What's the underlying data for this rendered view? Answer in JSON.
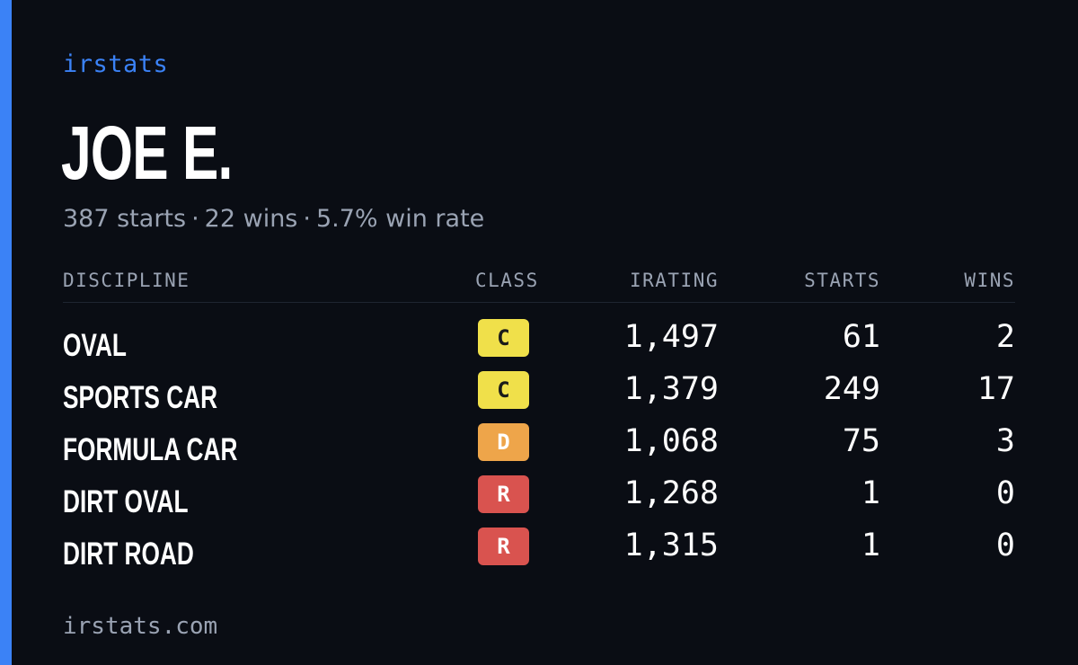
{
  "brand": "irstats",
  "player": {
    "name": "JOE E."
  },
  "summary": {
    "starts": "387 starts",
    "wins": "22 wins",
    "win_rate": "5.7% win rate",
    "separator": "·"
  },
  "table": {
    "headers": {
      "discipline": "DISCIPLINE",
      "class": "CLASS",
      "irating": "IRATING",
      "starts": "STARTS",
      "wins": "WINS"
    },
    "rows": [
      {
        "discipline": "OVAL",
        "class": "C",
        "irating": "1,497",
        "starts": "61",
        "wins": "2"
      },
      {
        "discipline": "SPORTS CAR",
        "class": "C",
        "irating": "1,379",
        "starts": "249",
        "wins": "17"
      },
      {
        "discipline": "FORMULA CAR",
        "class": "D",
        "irating": "1,068",
        "starts": "75",
        "wins": "3"
      },
      {
        "discipline": "DIRT OVAL",
        "class": "R",
        "irating": "1,268",
        "starts": "1",
        "wins": "0"
      },
      {
        "discipline": "DIRT ROAD",
        "class": "R",
        "irating": "1,315",
        "starts": "1",
        "wins": "0"
      }
    ]
  },
  "class_colors": {
    "C": {
      "bg": "#f0e04a",
      "fg": "#1a1a1a"
    },
    "D": {
      "bg": "#eea54a",
      "fg": "#ffffff"
    },
    "R": {
      "bg": "#d9534f",
      "fg": "#ffffff"
    }
  },
  "colors": {
    "accent": "#3b82f6",
    "background": "#0a0d14",
    "muted": "#9aa3b3"
  },
  "footer": {
    "url": "irstats.com"
  }
}
